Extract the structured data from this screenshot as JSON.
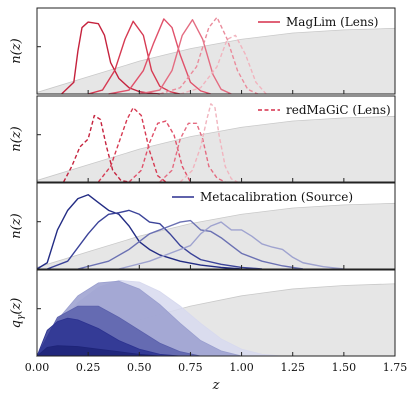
{
  "chart_data": [
    {
      "type": "line",
      "panel": "maglim",
      "ylabel": "n(z)",
      "legend": {
        "label": "MagLim (Lens)",
        "style": "solid",
        "color": "#d62f4a",
        "placement": "top-right"
      },
      "background_redshift_curve": {
        "x": [
          0,
          0.25,
          0.5,
          0.75,
          1.0,
          1.25,
          1.5,
          1.75
        ],
        "y": [
          0.02,
          0.22,
          0.42,
          0.58,
          0.7,
          0.78,
          0.82,
          0.84
        ]
      },
      "series": [
        {
          "color": "#c5223d",
          "x": [
            0.12,
            0.18,
            0.2,
            0.22,
            0.25,
            0.3,
            0.33,
            0.36,
            0.4,
            0.45,
            0.5,
            0.55,
            0.6
          ],
          "y": [
            0,
            0.15,
            0.55,
            0.85,
            0.92,
            0.9,
            0.75,
            0.4,
            0.2,
            0.08,
            0.03,
            0.01,
            0
          ]
        },
        {
          "color": "#d63a52",
          "x": [
            0.25,
            0.32,
            0.38,
            0.43,
            0.47,
            0.52,
            0.56,
            0.6,
            0.65,
            0.7
          ],
          "y": [
            0,
            0.05,
            0.3,
            0.7,
            0.93,
            0.75,
            0.3,
            0.1,
            0.03,
            0
          ]
        },
        {
          "color": "#e0516a",
          "x": [
            0.35,
            0.45,
            0.52,
            0.57,
            0.62,
            0.66,
            0.7,
            0.75,
            0.8,
            0.85
          ],
          "y": [
            0,
            0.05,
            0.3,
            0.65,
            0.96,
            0.85,
            0.5,
            0.15,
            0.04,
            0
          ]
        },
        {
          "color": "#e46c81",
          "x": [
            0.5,
            0.6,
            0.66,
            0.71,
            0.76,
            0.81,
            0.86,
            0.9,
            0.95
          ],
          "y": [
            0,
            0.05,
            0.3,
            0.75,
            0.95,
            0.7,
            0.25,
            0.06,
            0
          ]
        },
        {
          "color": "#ea8c9c",
          "style": "dashed",
          "x": [
            0.6,
            0.7,
            0.78,
            0.84,
            0.88,
            0.93,
            0.98,
            1.03,
            1.08
          ],
          "y": [
            0,
            0.08,
            0.35,
            0.85,
            0.98,
            0.7,
            0.3,
            0.06,
            0
          ]
        },
        {
          "color": "#f1b4be",
          "style": "dashed",
          "x": [
            0.7,
            0.8,
            0.88,
            0.93,
            0.97,
            1.02,
            1.07,
            1.12
          ],
          "y": [
            0,
            0.08,
            0.35,
            0.7,
            0.75,
            0.5,
            0.15,
            0
          ]
        }
      ],
      "xlim": [
        0,
        1.75
      ],
      "ylim": [
        0,
        1.1
      ]
    },
    {
      "type": "line",
      "panel": "redmagic",
      "ylabel": "n(z)",
      "legend": {
        "label": "redMaGiC (Lens)",
        "style": "dashed",
        "color": "#d62f4a",
        "placement": "top-right"
      },
      "background_redshift_curve": {
        "x": [
          0,
          0.25,
          0.5,
          0.75,
          1.0,
          1.25,
          1.5,
          1.75
        ],
        "y": [
          0.02,
          0.22,
          0.42,
          0.58,
          0.7,
          0.78,
          0.82,
          0.84
        ]
      },
      "series": [
        {
          "color": "#c5223d",
          "style": "dashed",
          "x": [
            0.13,
            0.17,
            0.21,
            0.25,
            0.28,
            0.31,
            0.34,
            0.37,
            0.41,
            0.45
          ],
          "y": [
            0,
            0.2,
            0.45,
            0.55,
            0.85,
            0.8,
            0.45,
            0.15,
            0.02,
            0
          ]
        },
        {
          "color": "#d63a52",
          "style": "dashed",
          "x": [
            0.3,
            0.36,
            0.4,
            0.44,
            0.47,
            0.51,
            0.55,
            0.59,
            0.63
          ],
          "y": [
            0,
            0.2,
            0.5,
            0.8,
            0.95,
            0.85,
            0.4,
            0.08,
            0
          ]
        },
        {
          "color": "#e0516a",
          "style": "dashed",
          "x": [
            0.45,
            0.51,
            0.55,
            0.59,
            0.63,
            0.67,
            0.71,
            0.75
          ],
          "y": [
            0,
            0.15,
            0.5,
            0.75,
            0.78,
            0.6,
            0.2,
            0
          ]
        },
        {
          "color": "#e46c81",
          "style": "dashed",
          "x": [
            0.6,
            0.66,
            0.7,
            0.74,
            0.78,
            0.81,
            0.84,
            0.88,
            0.92
          ],
          "y": [
            0,
            0.15,
            0.55,
            0.75,
            0.75,
            0.55,
            0.2,
            0.05,
            0
          ]
        },
        {
          "color": "#f1b4be",
          "style": "dashed",
          "x": [
            0.7,
            0.76,
            0.8,
            0.83,
            0.85,
            0.87,
            0.89,
            0.92,
            0.95,
            0.98
          ],
          "y": [
            0,
            0.15,
            0.45,
            0.8,
            1.0,
            0.95,
            0.6,
            0.2,
            0.04,
            0
          ]
        }
      ],
      "xlim": [
        0,
        1.75
      ],
      "ylim": [
        0,
        1.1
      ]
    },
    {
      "type": "line",
      "panel": "metacalibration",
      "ylabel": "n(z)",
      "legend": {
        "label": "Metacalibration (Source)",
        "style": "solid",
        "color": "#2a2f8f",
        "placement": "top-right"
      },
      "background_redshift_curve": {
        "x": [
          0,
          0.25,
          0.5,
          0.75,
          1.0,
          1.25,
          1.5,
          1.75
        ],
        "y": [
          0.02,
          0.22,
          0.42,
          0.58,
          0.7,
          0.78,
          0.82,
          0.84
        ]
      },
      "series": [
        {
          "color": "#232c84",
          "x": [
            0,
            0.05,
            0.1,
            0.15,
            0.2,
            0.25,
            0.3,
            0.35,
            0.4,
            0.45,
            0.5,
            0.55,
            0.6,
            0.7,
            0.8,
            0.9,
            1.0
          ],
          "y": [
            0,
            0.08,
            0.5,
            0.75,
            0.9,
            0.95,
            0.85,
            0.75,
            0.7,
            0.55,
            0.35,
            0.25,
            0.18,
            0.1,
            0.05,
            0.02,
            0
          ]
        },
        {
          "color": "#3b4399",
          "x": [
            0.05,
            0.15,
            0.25,
            0.3,
            0.35,
            0.4,
            0.45,
            0.5,
            0.55,
            0.6,
            0.65,
            0.7,
            0.75,
            0.8,
            0.9,
            1.0,
            1.1
          ],
          "y": [
            0,
            0.1,
            0.45,
            0.6,
            0.7,
            0.72,
            0.75,
            0.7,
            0.6,
            0.58,
            0.45,
            0.3,
            0.2,
            0.12,
            0.06,
            0.02,
            0
          ]
        },
        {
          "color": "#6b71b3",
          "x": [
            0.2,
            0.35,
            0.45,
            0.55,
            0.6,
            0.65,
            0.7,
            0.75,
            0.8,
            0.85,
            0.9,
            0.95,
            1.0,
            1.1,
            1.2,
            1.3
          ],
          "y": [
            0,
            0.1,
            0.25,
            0.45,
            0.5,
            0.55,
            0.6,
            0.62,
            0.5,
            0.48,
            0.4,
            0.3,
            0.2,
            0.1,
            0.04,
            0
          ]
        },
        {
          "color": "#9fa3cf",
          "x": [
            0.4,
            0.55,
            0.65,
            0.75,
            0.8,
            0.85,
            0.9,
            0.95,
            1.0,
            1.05,
            1.1,
            1.15,
            1.2,
            1.25,
            1.3,
            1.4,
            1.5
          ],
          "y": [
            0,
            0.1,
            0.2,
            0.3,
            0.45,
            0.55,
            0.6,
            0.5,
            0.5,
            0.42,
            0.32,
            0.28,
            0.25,
            0.15,
            0.08,
            0.03,
            0
          ]
        }
      ],
      "xlim": [
        0,
        1.75
      ],
      "ylim": [
        0,
        1.1
      ]
    },
    {
      "type": "area",
      "panel": "lensing-efficiency",
      "ylabel": "q_γ(z)",
      "xlabel": "z",
      "background_redshift_curve": {
        "x": [
          0,
          0.25,
          0.5,
          0.75,
          1.0,
          1.25,
          1.5,
          1.75
        ],
        "y": [
          0.02,
          0.22,
          0.42,
          0.58,
          0.7,
          0.78,
          0.82,
          0.84
        ]
      },
      "series": [
        {
          "color": "#d7d9ee",
          "x": [
            0,
            0.1,
            0.2,
            0.3,
            0.4,
            0.5,
            0.6,
            0.7,
            0.8,
            0.9,
            1.0,
            1.1,
            1.2
          ],
          "y": [
            0,
            0.35,
            0.62,
            0.8,
            0.88,
            0.86,
            0.75,
            0.58,
            0.38,
            0.2,
            0.08,
            0.02,
            0
          ]
        },
        {
          "color": "#9a9fcf",
          "x": [
            0,
            0.1,
            0.2,
            0.3,
            0.4,
            0.5,
            0.6,
            0.7,
            0.8,
            0.9,
            1.0
          ],
          "y": [
            0,
            0.42,
            0.7,
            0.85,
            0.87,
            0.78,
            0.6,
            0.38,
            0.18,
            0.06,
            0
          ]
        },
        {
          "color": "#5a60ab",
          "x": [
            0,
            0.1,
            0.2,
            0.3,
            0.4,
            0.5,
            0.6,
            0.7,
            0.8
          ],
          "y": [
            0,
            0.45,
            0.58,
            0.58,
            0.45,
            0.3,
            0.15,
            0.05,
            0
          ]
        },
        {
          "color": "#2c3290",
          "x": [
            0,
            0.05,
            0.1,
            0.15,
            0.2,
            0.3,
            0.4,
            0.5,
            0.6,
            0.7
          ],
          "y": [
            0,
            0.3,
            0.4,
            0.44,
            0.42,
            0.32,
            0.18,
            0.08,
            0.02,
            0
          ]
        },
        {
          "color": "#1e2478",
          "x": [
            0,
            0.05,
            0.1,
            0.2,
            0.3,
            0.4,
            0.5,
            0.6
          ],
          "y": [
            0,
            0.1,
            0.12,
            0.11,
            0.08,
            0.05,
            0.02,
            0
          ]
        }
      ],
      "xlim": [
        0,
        1.75
      ],
      "ylim": [
        0,
        1.0
      ],
      "x_ticks": [
        "0.00",
        "0.25",
        "0.50",
        "0.75",
        "1.00",
        "1.25",
        "1.50",
        "1.75"
      ]
    }
  ],
  "colors": {
    "background_fill": "#e6e6e6",
    "background_stroke": "#c9c9c9",
    "axis": "#222222"
  }
}
